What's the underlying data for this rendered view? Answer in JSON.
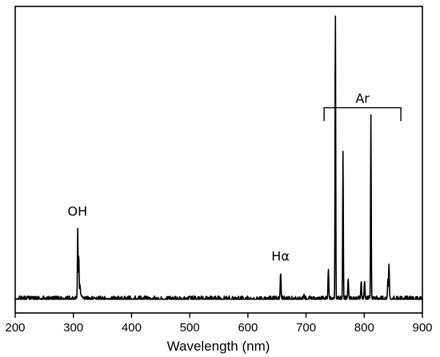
{
  "chart_data": {
    "type": "line",
    "title": "",
    "xlabel": "Wavelength (nm)",
    "ylabel": "",
    "xlim": [
      200,
      900
    ],
    "ylim": [
      0,
      1
    ],
    "x_ticks": [
      200,
      300,
      400,
      500,
      600,
      700,
      800,
      900
    ],
    "y_ticks_labeled": false,
    "grid": false,
    "legend": "none",
    "line_color": "#000000",
    "series": [
      {
        "name": "",
        "noise_floor": 0.03,
        "peaks": [
          {
            "x": 307.5,
            "y": 0.27
          },
          {
            "x": 309.2,
            "y": 0.18
          },
          {
            "x": 311.5,
            "y": 0.08
          },
          {
            "x": 315,
            "y": 0.04
          },
          {
            "x": 337,
            "y": 0.036
          },
          {
            "x": 357,
            "y": 0.032
          },
          {
            "x": 656.3,
            "y": 0.12
          },
          {
            "x": 696.5,
            "y": 0.045
          },
          {
            "x": 706.7,
            "y": 0.04
          },
          {
            "x": 738.4,
            "y": 0.13
          },
          {
            "x": 750.4,
            "y": 1.0
          },
          {
            "x": 763.5,
            "y": 0.53
          },
          {
            "x": 772.4,
            "y": 0.1
          },
          {
            "x": 794.8,
            "y": 0.09
          },
          {
            "x": 800.6,
            "y": 0.09
          },
          {
            "x": 811.5,
            "y": 0.65
          },
          {
            "x": 826.5,
            "y": 0.03
          },
          {
            "x": 840.8,
            "y": 0.1
          },
          {
            "x": 842.5,
            "y": 0.15
          }
        ]
      }
    ],
    "annotations": [
      {
        "text": "OH",
        "x": 307,
        "y": 0.3
      },
      {
        "text": "Hα",
        "x": 656,
        "y": 0.15
      },
      {
        "text": "Ar",
        "x": 797,
        "y": 0.68
      }
    ],
    "bracket": {
      "label": "Ar",
      "x_start": 731,
      "x_end": 863,
      "y": 0.675,
      "y_drop": 0.63
    }
  }
}
